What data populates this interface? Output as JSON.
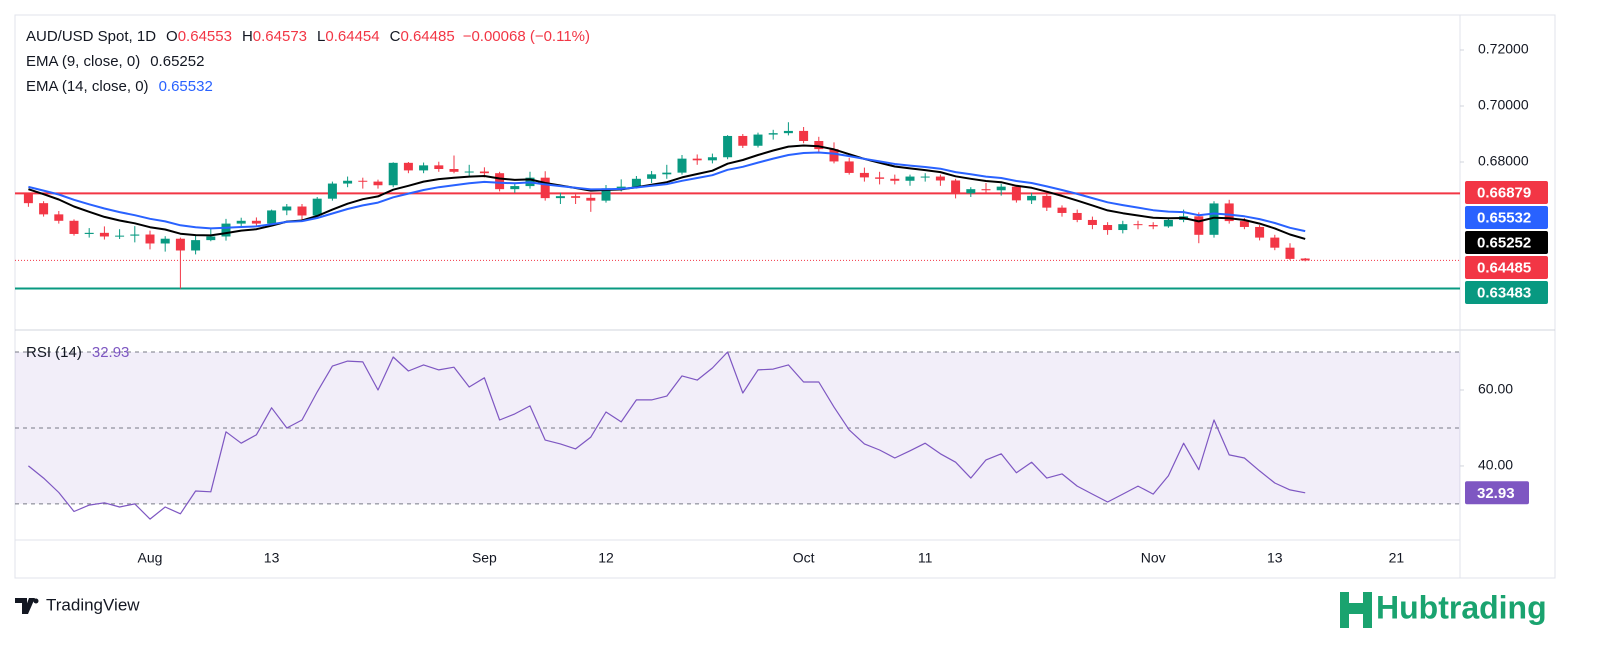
{
  "chart_data": [
    {
      "type": "candlestick",
      "title": "AUD/USD Spot, 1D",
      "ohlc_letters": [
        "O",
        "H",
        "L",
        "C"
      ],
      "change": "−0.00068 (−0.11%)",
      "categories": [
        null,
        null,
        null,
        null,
        null,
        null,
        null,
        null,
        "Aug",
        null,
        null,
        null,
        null,
        null,
        null,
        null,
        "13",
        null,
        null,
        null,
        null,
        null,
        null,
        null,
        null,
        null,
        null,
        null,
        null,
        null,
        "Sep",
        null,
        null,
        null,
        null,
        null,
        null,
        null,
        "12",
        null,
        null,
        null,
        null,
        null,
        null,
        null,
        null,
        null,
        null,
        null,
        null,
        "Oct",
        null,
        null,
        null,
        null,
        null,
        null,
        null,
        "11",
        null,
        null,
        null,
        null,
        null,
        null,
        null,
        null,
        null,
        null,
        null,
        null,
        null,
        null,
        "Nov",
        null,
        null,
        null,
        null,
        null,
        null,
        null,
        "13",
        null,
        null,
        null,
        null,
        null,
        null,
        null,
        "21",
        null,
        null,
        null
      ],
      "open": [
        0.6687,
        0.6653,
        0.6613,
        0.659,
        0.6543,
        0.6547,
        0.6534,
        0.6537,
        0.6541,
        0.6509,
        0.6526,
        0.6484,
        0.6521,
        0.6534,
        0.658,
        0.659,
        0.658,
        0.6627,
        0.6641,
        0.6609,
        0.6669,
        0.6723,
        0.6733,
        0.673,
        0.6717,
        0.6797,
        0.677,
        0.6788,
        0.6775,
        0.6765,
        0.6766,
        0.676,
        0.6703,
        0.6714,
        0.6744,
        0.6671,
        0.6678,
        0.6672,
        0.6662,
        0.6706,
        0.6712,
        0.674,
        0.6756,
        0.6762,
        0.6812,
        0.6806,
        0.6817,
        0.6893,
        0.6858,
        0.6898,
        0.6903,
        0.6911,
        0.6875,
        0.6846,
        0.6802,
        0.6761,
        0.6745,
        0.674,
        0.6733,
        0.6745,
        0.6748,
        0.6734,
        0.6688,
        0.6703,
        0.6699,
        0.6712,
        0.6663,
        0.6679,
        0.6637,
        0.6618,
        0.6593,
        0.6575,
        0.6557,
        0.6578,
        0.6575,
        0.657,
        0.6593,
        0.6606,
        0.654,
        0.6652,
        0.6589,
        0.6568,
        0.653,
        0.6494,
        0.64553,
        null,
        null,
        null,
        null,
        null,
        null,
        null,
        null,
        null
      ],
      "high": [
        0.669,
        0.666,
        0.6625,
        0.6595,
        0.6564,
        0.657,
        0.656,
        0.6571,
        0.6555,
        0.6535,
        0.653,
        0.6538,
        0.6563,
        0.6597,
        0.6601,
        0.6602,
        0.663,
        0.665,
        0.665,
        0.6675,
        0.673,
        0.6748,
        0.6744,
        0.6737,
        0.6799,
        0.68,
        0.6798,
        0.6801,
        0.6823,
        0.679,
        0.6781,
        0.6765,
        0.6725,
        0.6765,
        0.6767,
        0.669,
        0.6685,
        0.669,
        0.6718,
        0.6738,
        0.675,
        0.6768,
        0.679,
        0.6825,
        0.6827,
        0.683,
        0.6896,
        0.69,
        0.6905,
        0.6915,
        0.6942,
        0.6925,
        0.689,
        0.687,
        0.6815,
        0.678,
        0.6765,
        0.6755,
        0.6755,
        0.676,
        0.6755,
        0.674,
        0.671,
        0.6725,
        0.6722,
        0.6718,
        0.669,
        0.6685,
        0.6645,
        0.663,
        0.6605,
        0.6585,
        0.659,
        0.659,
        0.6585,
        0.66,
        0.663,
        0.662,
        0.666,
        0.6665,
        0.66,
        0.6575,
        0.654,
        0.651,
        0.64573,
        null,
        null,
        null,
        null,
        null,
        null,
        null,
        null,
        null
      ],
      "low": [
        0.664,
        0.6605,
        0.658,
        0.6537,
        0.653,
        0.6523,
        0.6525,
        0.6513,
        0.6488,
        0.648,
        0.6348,
        0.647,
        0.6517,
        0.6519,
        0.6565,
        0.657,
        0.6575,
        0.661,
        0.659,
        0.66,
        0.6662,
        0.671,
        0.6705,
        0.6705,
        0.671,
        0.676,
        0.676,
        0.6765,
        0.676,
        0.675,
        0.6745,
        0.6695,
        0.669,
        0.6705,
        0.6662,
        0.665,
        0.665,
        0.6622,
        0.6655,
        0.6695,
        0.6705,
        0.6725,
        0.674,
        0.6755,
        0.679,
        0.6795,
        0.681,
        0.685,
        0.6852,
        0.688,
        0.6895,
        0.6867,
        0.6835,
        0.6795,
        0.6755,
        0.673,
        0.672,
        0.672,
        0.6715,
        0.673,
        0.6715,
        0.667,
        0.6675,
        0.669,
        0.668,
        0.6655,
        0.665,
        0.6625,
        0.6605,
        0.6585,
        0.656,
        0.654,
        0.6545,
        0.656,
        0.656,
        0.6565,
        0.6585,
        0.651,
        0.653,
        0.658,
        0.656,
        0.652,
        0.6485,
        0.645,
        0.64454,
        null,
        null,
        null,
        null,
        null,
        null,
        null,
        null,
        null
      ],
      "close": [
        0.6653,
        0.6613,
        0.659,
        0.6543,
        0.6547,
        0.6534,
        0.6537,
        0.6541,
        0.6509,
        0.6526,
        0.6484,
        0.6521,
        0.6534,
        0.658,
        0.659,
        0.658,
        0.6627,
        0.6641,
        0.6609,
        0.6669,
        0.6723,
        0.6733,
        0.673,
        0.6717,
        0.6797,
        0.677,
        0.6788,
        0.6775,
        0.6765,
        0.6766,
        0.676,
        0.6703,
        0.6714,
        0.6744,
        0.6671,
        0.6678,
        0.6672,
        0.6662,
        0.6706,
        0.6712,
        0.674,
        0.6756,
        0.6762,
        0.6812,
        0.6806,
        0.6817,
        0.6893,
        0.6858,
        0.6898,
        0.6903,
        0.6911,
        0.6875,
        0.6846,
        0.6802,
        0.6761,
        0.6745,
        0.674,
        0.6733,
        0.6748,
        0.6748,
        0.6734,
        0.6688,
        0.6703,
        0.6699,
        0.6712,
        0.6663,
        0.6679,
        0.6637,
        0.6618,
        0.6593,
        0.6575,
        0.6557,
        0.6578,
        0.6575,
        0.657,
        0.6593,
        0.6606,
        0.654,
        0.6652,
        0.6589,
        0.6568,
        0.653,
        0.6494,
        0.6454,
        0.64485,
        null,
        null,
        null,
        null,
        null,
        null,
        null,
        null,
        null
      ],
      "up_color": "#089981",
      "down_color": "#f23645",
      "series": [
        {
          "name": "EMA (9, close, 0)",
          "color": "#000000",
          "values": [
            0.6703,
            0.6685,
            0.6666,
            0.6641,
            0.6622,
            0.6604,
            0.6591,
            0.6581,
            0.6567,
            0.6559,
            0.6544,
            0.6539,
            0.6538,
            0.6546,
            0.6555,
            0.656,
            0.6573,
            0.6587,
            0.6591,
            0.6607,
            0.663,
            0.6651,
            0.6667,
            0.6677,
            0.6701,
            0.6715,
            0.673,
            0.6739,
            0.6744,
            0.6748,
            0.675,
            0.6741,
            0.6736,
            0.6738,
            0.6725,
            0.6716,
            0.6707,
            0.6698,
            0.67,
            0.6702,
            0.671,
            0.6719,
            0.6728,
            0.6745,
            0.6757,
            0.6769,
            0.6794,
            0.6807,
            0.6825,
            0.6841,
            0.6855,
            0.6859,
            0.6856,
            0.6845,
            0.6828,
            0.6811,
            0.6797,
            0.6784,
            0.6777,
            0.6771,
            0.6764,
            0.6749,
            0.674,
            0.6732,
            0.6728,
            0.6715,
            0.6708,
            0.6694,
            0.6679,
            0.6662,
            0.6645,
            0.6627,
            0.6617,
            0.6609,
            0.6601,
            0.6599,
            0.66,
            0.6588,
            0.6601,
            0.6599,
            0.6593,
            0.658,
            0.6563,
            0.6541,
            0.65252,
            null,
            null,
            null,
            null,
            null,
            null,
            null,
            null,
            null
          ]
        },
        {
          "name": "EMA (14, close, 0)",
          "color": "#2962ff",
          "values": [
            0.6711,
            0.6698,
            0.6684,
            0.6665,
            0.6649,
            0.6634,
            0.6621,
            0.661,
            0.6597,
            0.6588,
            0.6574,
            0.6567,
            0.6563,
            0.6565,
            0.6568,
            0.657,
            0.6578,
            0.6586,
            0.6589,
            0.66,
            0.6616,
            0.6632,
            0.6645,
            0.6655,
            0.6674,
            0.6687,
            0.67,
            0.671,
            0.6717,
            0.6724,
            0.6729,
            0.6726,
            0.6724,
            0.6727,
            0.672,
            0.6714,
            0.6708,
            0.6702,
            0.6703,
            0.6704,
            0.6709,
            0.6715,
            0.6721,
            0.6733,
            0.6743,
            0.6753,
            0.6772,
            0.6783,
            0.6798,
            0.6812,
            0.6825,
            0.6832,
            0.6834,
            0.683,
            0.6821,
            0.6811,
            0.6802,
            0.6793,
            0.6787,
            0.6782,
            0.6776,
            0.6764,
            0.6756,
            0.6748,
            0.6743,
            0.6732,
            0.6725,
            0.6713,
            0.67,
            0.6686,
            0.6671,
            0.6656,
            0.6646,
            0.6637,
            0.6628,
            0.6623,
            0.6621,
            0.661,
            0.6616,
            0.6612,
            0.6606,
            0.6596,
            0.6582,
            0.6565,
            0.65532,
            null,
            null,
            null,
            null,
            null,
            null,
            null,
            null,
            null
          ]
        }
      ],
      "levels": [
        {
          "value": 0.66879,
          "color": "#f23645"
        },
        {
          "value": 0.63483,
          "color": "#089981"
        }
      ],
      "ylim": [
        0.62,
        0.7325
      ],
      "yticks": [
        {
          "value": 0.72,
          "label": "0.72000"
        },
        {
          "value": 0.7,
          "label": "0.70000"
        },
        {
          "value": 0.68,
          "label": "0.68000"
        }
      ]
    },
    {
      "type": "line",
      "series": [
        {
          "name": "RSI (14)",
          "color": "#7e57c2",
          "values": [
            40,
            36.8,
            33,
            28,
            29.7,
            30.3,
            29.2,
            30,
            26,
            29.2,
            27.4,
            33.4,
            33.2,
            49,
            46,
            48.2,
            55.3,
            50,
            52.1,
            59.5,
            66.3,
            67.6,
            67.4,
            60,
            68.7,
            65,
            66.6,
            65.3,
            66,
            60.8,
            63.2,
            52.1,
            53.7,
            55.8,
            46.8,
            45.8,
            44.5,
            47.6,
            54.2,
            51.6,
            57.4,
            57.4,
            58.4,
            63.7,
            62.6,
            65.8,
            70,
            59.2,
            65.3,
            65.5,
            66.6,
            62.1,
            62.1,
            55.5,
            49.5,
            45.8,
            44.2,
            42.1,
            44,
            46,
            43.2,
            41,
            36.8,
            41.6,
            43.2,
            38.2,
            41,
            36.8,
            37.9,
            34.7,
            32.6,
            30.5,
            32.6,
            34.7,
            32.6,
            37.4,
            46,
            39,
            52.1,
            42.9,
            42.1,
            38.7,
            35.5,
            33.7,
            32.93,
            null,
            null,
            null,
            null,
            null,
            null,
            null,
            null,
            null
          ]
        }
      ],
      "levels": [
        70,
        50,
        30
      ],
      "ylim": [
        20.5,
        75.8
      ],
      "yticks": [
        {
          "value": 60,
          "label": "60.00"
        },
        {
          "value": 40,
          "label": "40.00"
        }
      ]
    }
  ],
  "branding": {
    "left": "TradingView",
    "right": "Hubtrading"
  }
}
